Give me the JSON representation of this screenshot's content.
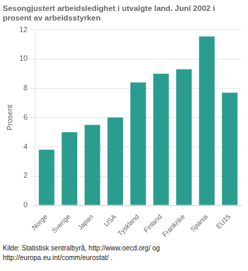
{
  "chart_data": {
    "type": "bar",
    "title": [
      "Sesongjustert arbeidsledighet i utvalgte land. Juni 2002 i",
      "prosent av arbeidsstyrken"
    ],
    "ylabel": "Prosent",
    "categories": [
      "Norge",
      "Sverige",
      "Japan",
      "USA",
      "Tyskland",
      "Finland",
      "Frankrike",
      "Spania",
      "EU15"
    ],
    "values": [
      3.8,
      5.0,
      5.5,
      6.0,
      8.4,
      9.0,
      9.3,
      11.55,
      7.7
    ],
    "color": "#2a9d8f",
    "ylim": [
      0,
      12
    ],
    "yticks": [
      0,
      2,
      4,
      6,
      8,
      10,
      12
    ],
    "grid": true,
    "annotations": [
      "Kilde: Statistisk sentralbyrå, http://www.oecd.org/ og",
      "http://europa.eu.int/comm/eurostat/ ."
    ]
  }
}
